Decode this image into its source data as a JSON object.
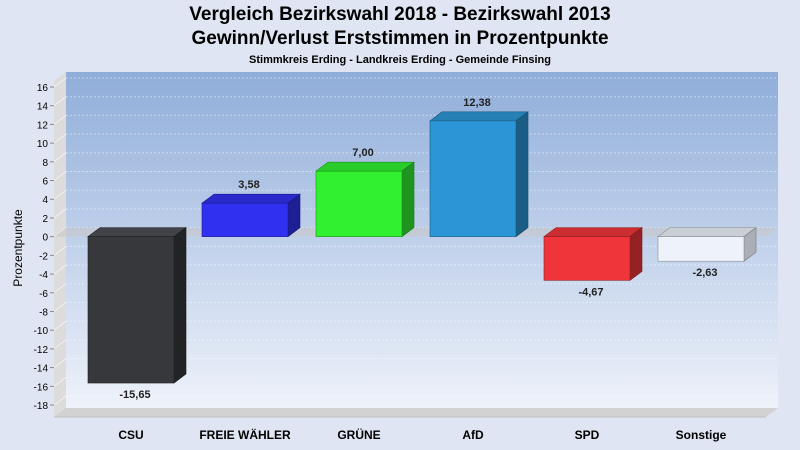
{
  "chart_data": {
    "type": "bar",
    "title": "Vergleich Bezirkswahl 2018 - Bezirkswahl 2013",
    "subtitle": "Gewinn/Verlust Erststimmen in Prozentpunkte",
    "caption": "Stimmkreis Erding - Landkreis Erding - Gemeinde Finsing",
    "xlabel": "",
    "ylabel": "Prozentpunkte",
    "ylim": [
      -18,
      16
    ],
    "yticks": [
      16,
      14,
      12,
      10,
      8,
      6,
      4,
      2,
      0,
      -2,
      -4,
      -6,
      -8,
      -10,
      -12,
      -14,
      -16,
      -18
    ],
    "categories": [
      "CSU",
      "FREIE WÄHLER",
      "GRÜNE",
      "AfD",
      "SPD",
      "Sonstige"
    ],
    "values": [
      -15.65,
      3.58,
      7.0,
      12.38,
      -4.67,
      -2.63
    ],
    "value_labels": [
      "-15,65",
      "3,58",
      "7,00",
      "12,38",
      "-4,67",
      "-2,63"
    ],
    "colors": [
      "#36383c",
      "#3030f0",
      "#30f030",
      "#2b96d6",
      "#f0353a",
      "#eef2fa"
    ],
    "grid": true
  }
}
